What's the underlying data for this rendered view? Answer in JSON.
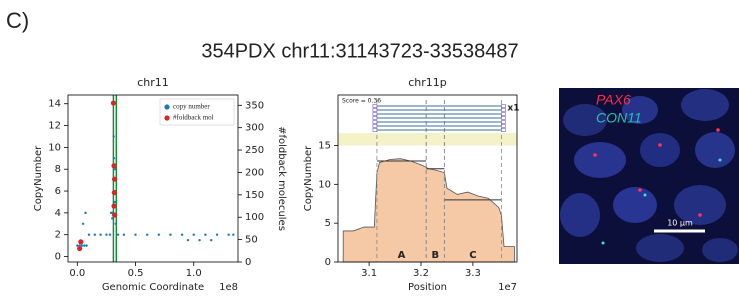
{
  "panel_label": "C)",
  "title": "354PDX chr11:31143723-33538487",
  "chart_data": [
    {
      "type": "scatter",
      "title": "chr11",
      "xlabel": "Genomic Coordinate",
      "ylabel": "CopyNumber",
      "y2label": "#foldback molecules",
      "x_offset_label": "1e8",
      "xlim": [
        -0.08,
        1.38
      ],
      "xticks": [
        {
          "value": 0,
          "label": "0.0"
        },
        {
          "value": 0.5,
          "label": "0.5"
        },
        {
          "value": 1,
          "label": "1.0"
        }
      ],
      "ylim": [
        -0.5,
        14.8
      ],
      "yticks": [
        0,
        2,
        4,
        6,
        8,
        10,
        12,
        14
      ],
      "y2lim": [
        0,
        373
      ],
      "y2ticks": [
        0,
        50,
        100,
        150,
        200,
        250,
        300,
        350
      ],
      "vlines": [
        0.31,
        0.335
      ],
      "vline_color": "#1a8a3a",
      "legend": "upper right",
      "series": [
        {
          "name": "copy number",
          "color": "#1f77b4",
          "x": [
            0.0,
            0.02,
            0.04,
            0.06,
            0.08,
            0.1,
            0.15,
            0.2,
            0.25,
            0.28,
            0.3,
            0.31,
            0.312,
            0.315,
            0.318,
            0.32,
            0.322,
            0.325,
            0.33,
            0.35,
            0.4,
            0.5,
            0.6,
            0.7,
            0.8,
            0.9,
            1.0,
            1.1,
            1.2,
            1.3,
            1.34,
            0.05,
            0.07,
            0.29,
            0.3,
            0.95,
            1.05,
            1.15
          ],
          "values": [
            1,
            1,
            1,
            1,
            1,
            2,
            2,
            2,
            2,
            2,
            4,
            14,
            11,
            9,
            7,
            6,
            5,
            8,
            3,
            2,
            2,
            2,
            2,
            2,
            2,
            2,
            2,
            2,
            2,
            2,
            2,
            3,
            4,
            4,
            3.5,
            1.5,
            1.5,
            1.5
          ]
        },
        {
          "name": "#foldback mol",
          "color": "#d62728",
          "axis": "y2",
          "x": [
            0.02,
            0.03,
            0.31,
            0.315,
            0.32,
            0.318,
            0.315,
            0.32
          ],
          "values": [
            30,
            45,
            355,
            215,
            185,
            155,
            125,
            105
          ]
        }
      ]
    },
    {
      "type": "area",
      "title": "chr11p",
      "xlabel": "Position",
      "ylabel": "CopyNumber",
      "x_offset_label": "1e7",
      "xlim": [
        3.04,
        3.385
      ],
      "xticks": [
        3.1,
        3.2,
        3.3
      ],
      "ylim": [
        0,
        21.5
      ],
      "yticks": [
        0,
        5,
        10,
        15
      ],
      "color": "#f5c8a6",
      "x": [
        3.05,
        3.07,
        3.09,
        3.11,
        3.115,
        3.12,
        3.14,
        3.16,
        3.18,
        3.2,
        3.21,
        3.215,
        3.23,
        3.245,
        3.25,
        3.27,
        3.29,
        3.31,
        3.33,
        3.35,
        3.355,
        3.36,
        3.38
      ],
      "values": [
        4,
        4,
        4.5,
        4.5,
        11.5,
        12.8,
        13.2,
        13.3,
        13,
        12.5,
        12.2,
        12,
        11.8,
        11.5,
        9.5,
        8.7,
        9,
        8.5,
        8.2,
        7,
        6,
        2,
        2
      ],
      "segments": [
        {
          "label": "A",
          "start": 3.115,
          "end": 3.21,
          "value": 13
        },
        {
          "label": "B",
          "start": 3.21,
          "end": 3.245,
          "value": 12
        },
        {
          "label": "C",
          "start": 3.245,
          "end": 3.355,
          "value": 8
        }
      ],
      "score_label": "Score = 0.36",
      "multiplicity_label": "x1"
    }
  ],
  "image": {
    "probe_1": "PAX6",
    "probe_2": "CON11",
    "scale_bar": "10 µm"
  }
}
